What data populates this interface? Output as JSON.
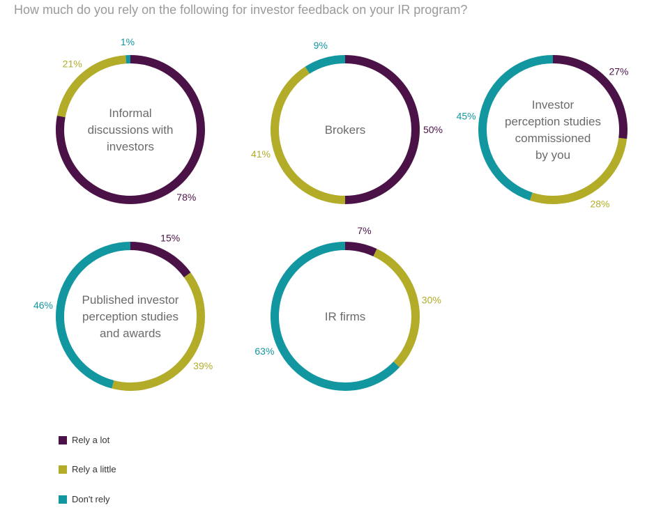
{
  "question": "How much do you rely on the following for investor feedback on your IR program?",
  "chart_data": {
    "type": "donut",
    "title": "How much do you rely on the following for investor feedback on your IR program?",
    "series_names": [
      "Rely a lot",
      "Rely a little",
      "Don't rely"
    ],
    "colors": [
      "#4b1247",
      "#b2ac29",
      "#1296a0"
    ],
    "charts": [
      {
        "label_lines": [
          "Informal",
          "discussions with",
          "investors"
        ],
        "values": [
          78,
          21,
          1
        ],
        "labels": [
          "78%",
          "21%",
          "1%"
        ]
      },
      {
        "label_lines": [
          "Brokers"
        ],
        "values": [
          50,
          41,
          9
        ],
        "labels": [
          "50%",
          "41%",
          "9%"
        ]
      },
      {
        "label_lines": [
          "Investor",
          "perception studies",
          "commissioned",
          "by you"
        ],
        "values": [
          27,
          28,
          45
        ],
        "labels": [
          "27%",
          "28%",
          "45%"
        ]
      },
      {
        "label_lines": [
          "Published investor",
          "perception studies",
          "and awards"
        ],
        "values": [
          15,
          39,
          46
        ],
        "labels": [
          "15%",
          "39%",
          "46%"
        ]
      },
      {
        "label_lines": [
          "IR firms"
        ],
        "values": [
          7,
          30,
          63
        ],
        "labels": [
          "7%",
          "30%",
          "63%"
        ]
      }
    ]
  },
  "legend": [
    {
      "label": "Rely a lot",
      "color": "#4b1247"
    },
    {
      "label": "Rely a little",
      "color": "#b2ac29"
    },
    {
      "label": "Don't rely",
      "color": "#1296a0"
    }
  ]
}
